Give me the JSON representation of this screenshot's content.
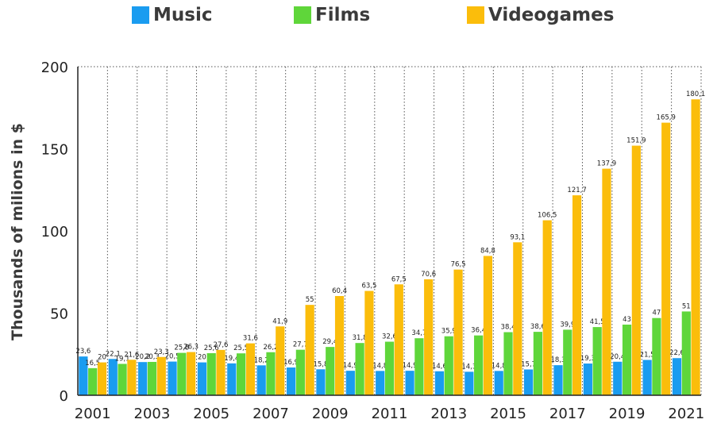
{
  "chart_data": {
    "type": "bar",
    "categories": [
      "2001",
      "2002",
      "2003",
      "2004",
      "2005",
      "2006",
      "2007",
      "2008",
      "2009",
      "2010",
      "2011",
      "2012",
      "2013",
      "2014",
      "2015",
      "2016",
      "2017",
      "2018",
      "2019",
      "2020",
      "2021"
    ],
    "series": [
      {
        "name": "Music",
        "color": "#1a9cf0",
        "values": [
          23.6,
          22.1,
          20.2,
          20.5,
          20.0,
          19.4,
          18.2,
          16.9,
          15.8,
          14.9,
          14.8,
          14.9,
          14.6,
          14.3,
          14.8,
          15.7,
          18.3,
          19.3,
          20.4,
          21.5,
          22.6
        ],
        "labels": [
          "23,6",
          "22,1",
          "20,2",
          "20,5",
          "20",
          "19,4",
          "18,2",
          "16,9",
          "15,8",
          "14,9",
          "14,8",
          "14,9",
          "14,6",
          "14,3",
          "14,8",
          "15,7",
          "18,3",
          "19,3",
          "20,4",
          "21,5",
          "22,6"
        ]
      },
      {
        "name": "Films",
        "color": "#5fd63a",
        "values": [
          16.5,
          19.1,
          20.3,
          25.8,
          25.6,
          25.5,
          26.2,
          27.7,
          29.4,
          31.8,
          32.6,
          34.7,
          35.9,
          36.4,
          38.4,
          38.6,
          39.9,
          41.5,
          43,
          47,
          51
        ],
        "labels": [
          "16,5",
          "19,1",
          "20,3",
          "25,8",
          "25,6",
          "25,5",
          "26,2",
          "27,7",
          "29,4",
          "31,8",
          "32,6",
          "34,7",
          "35,9",
          "36,4",
          "38,4",
          "38,6",
          "39,9",
          "41,5",
          "43",
          "47",
          "51"
        ]
      },
      {
        "name": "Videogames",
        "color": "#fbbd0b",
        "values": [
          20,
          21.6,
          23.3,
          26.3,
          27.6,
          31.6,
          41.9,
          55,
          60.4,
          63.5,
          67.5,
          70.6,
          76.5,
          84.8,
          93.1,
          106.5,
          121.7,
          137.9,
          151.9,
          165.9,
          180.1
        ],
        "labels": [
          "20",
          "21,6",
          "23,3",
          "26,3",
          "27,6",
          "31,6",
          "41,9",
          "55",
          "60,4",
          "63,5",
          "67,5",
          "70,6",
          "76,5",
          "84,8",
          "93,1",
          "106,5",
          "121,7",
          "137,9",
          "151,9",
          "165,9",
          "180,1"
        ]
      }
    ],
    "x_tick_labels": [
      "2001",
      "2003",
      "2005",
      "2007",
      "2009",
      "2011",
      "2013",
      "2015",
      "2017",
      "2019",
      "2021"
    ],
    "y_ticks": [
      "0",
      "50",
      "100",
      "150",
      "200"
    ],
    "ylim": [
      0,
      200
    ],
    "ylabel": "Thousands of milions in $",
    "xlabel": "",
    "title": "",
    "legend_position": "top-center",
    "grid": "vertical-dotted",
    "colors": {
      "axis": "#222222",
      "grid": "#555555",
      "text": "#222222"
    }
  }
}
